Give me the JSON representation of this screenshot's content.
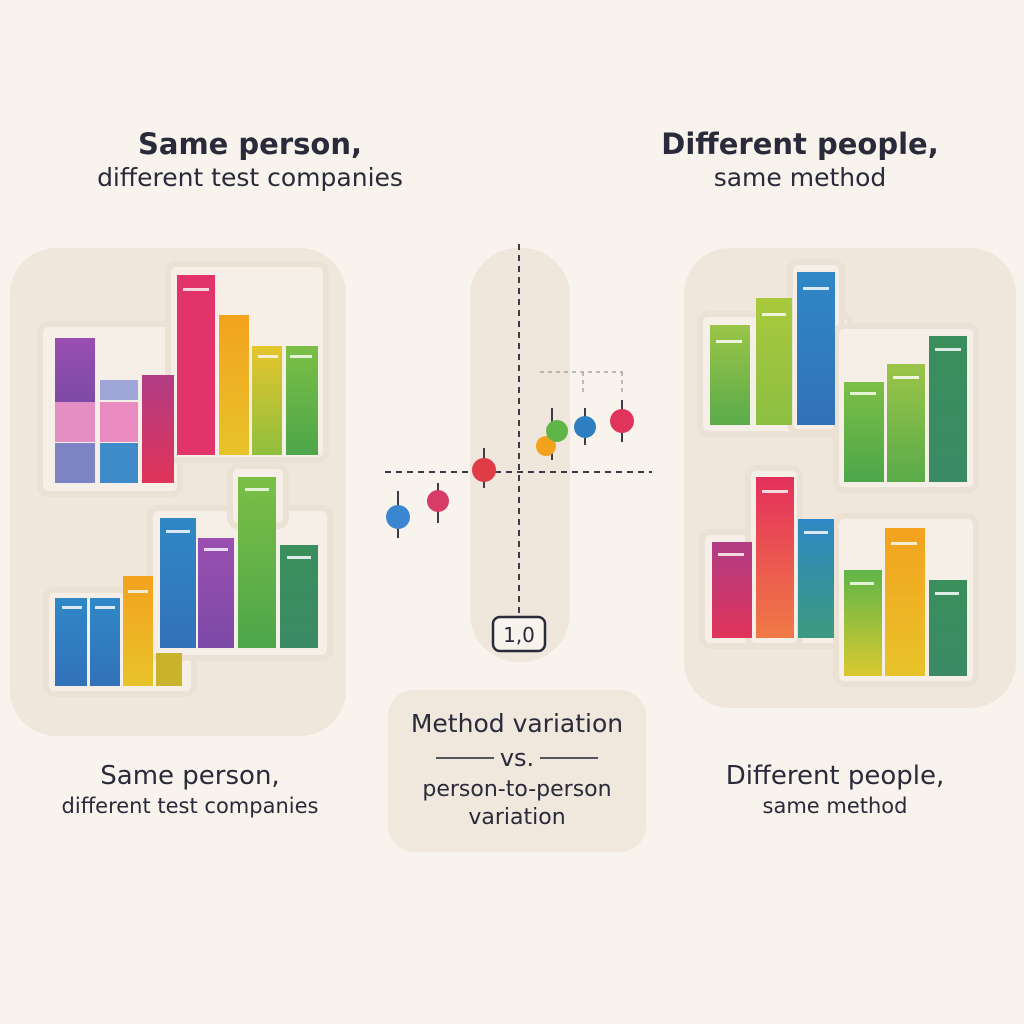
{
  "top_left": {
    "title": "Same person,",
    "subtitle": "different test companies"
  },
  "top_right": {
    "title": "Different people,",
    "subtitle": "same method"
  },
  "bottom_left": {
    "line1": "Same person,",
    "line2": "different test companies"
  },
  "bottom_right": {
    "line1": "Different people,",
    "line2": "same method"
  },
  "center_box": {
    "line1": "Method variation",
    "line2": "vs.",
    "line3": "person-to-person",
    "line4": "variation"
  },
  "axis_badge": "1,0",
  "colors": {
    "background": "#f8f3ec",
    "panel": "#efe6dc",
    "red": "#e0345a",
    "orange": "#f3a21e",
    "yellow": "#e6c52c",
    "green": "#5fb548",
    "lime": "#a8c93c",
    "blue": "#2e7fc1",
    "purple": "#8a4aa6",
    "pink": "#e98ac0",
    "teal": "#2f8b62"
  }
}
